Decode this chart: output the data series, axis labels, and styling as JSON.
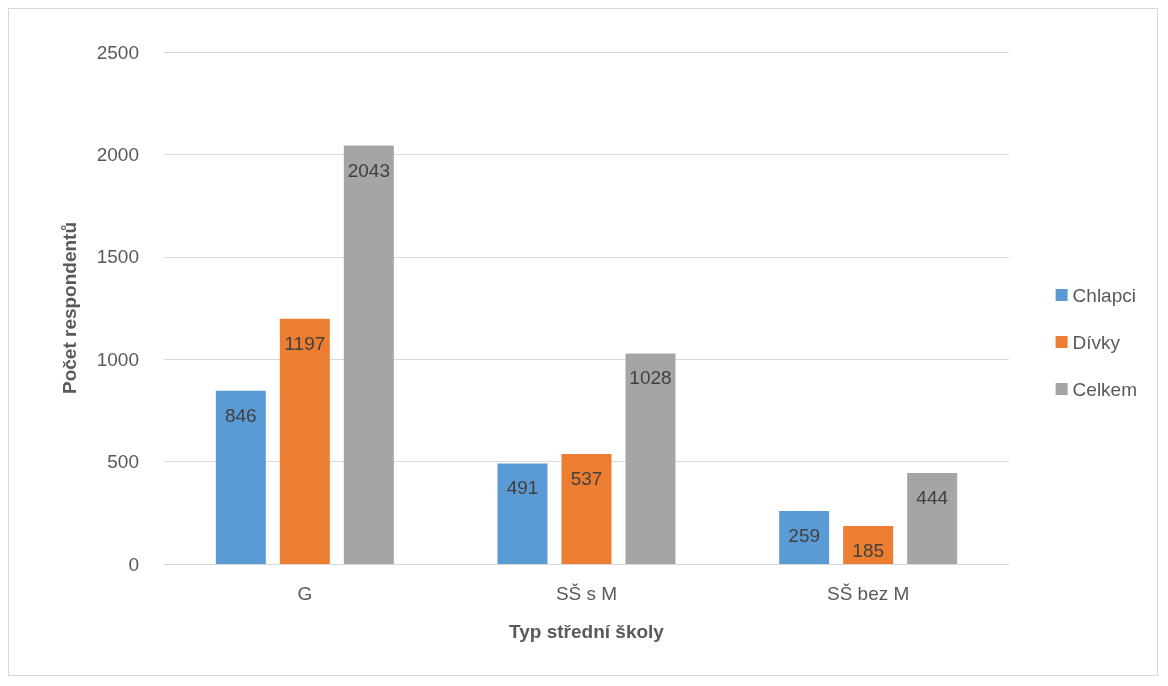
{
  "chart_data": {
    "type": "bar",
    "xlabel": "Typ střední školy",
    "ylabel": "Počet respondentů",
    "categories": [
      "G",
      "SŠ s M",
      "SŠ bez M"
    ],
    "series": [
      {
        "name": "Chlapci",
        "color": "#5b9bd5",
        "values": [
          846,
          491,
          259
        ]
      },
      {
        "name": "Dívky",
        "color": "#ed7d31",
        "values": [
          1197,
          537,
          185
        ]
      },
      {
        "name": "Celkem",
        "color": "#a5a5a5",
        "values": [
          2043,
          1028,
          444
        ]
      }
    ],
    "ylim": [
      0,
      2500
    ],
    "yticks": [
      0,
      500,
      1000,
      1500,
      2000,
      2500
    ],
    "grid": "y",
    "legend": "right",
    "data_labels": true
  }
}
